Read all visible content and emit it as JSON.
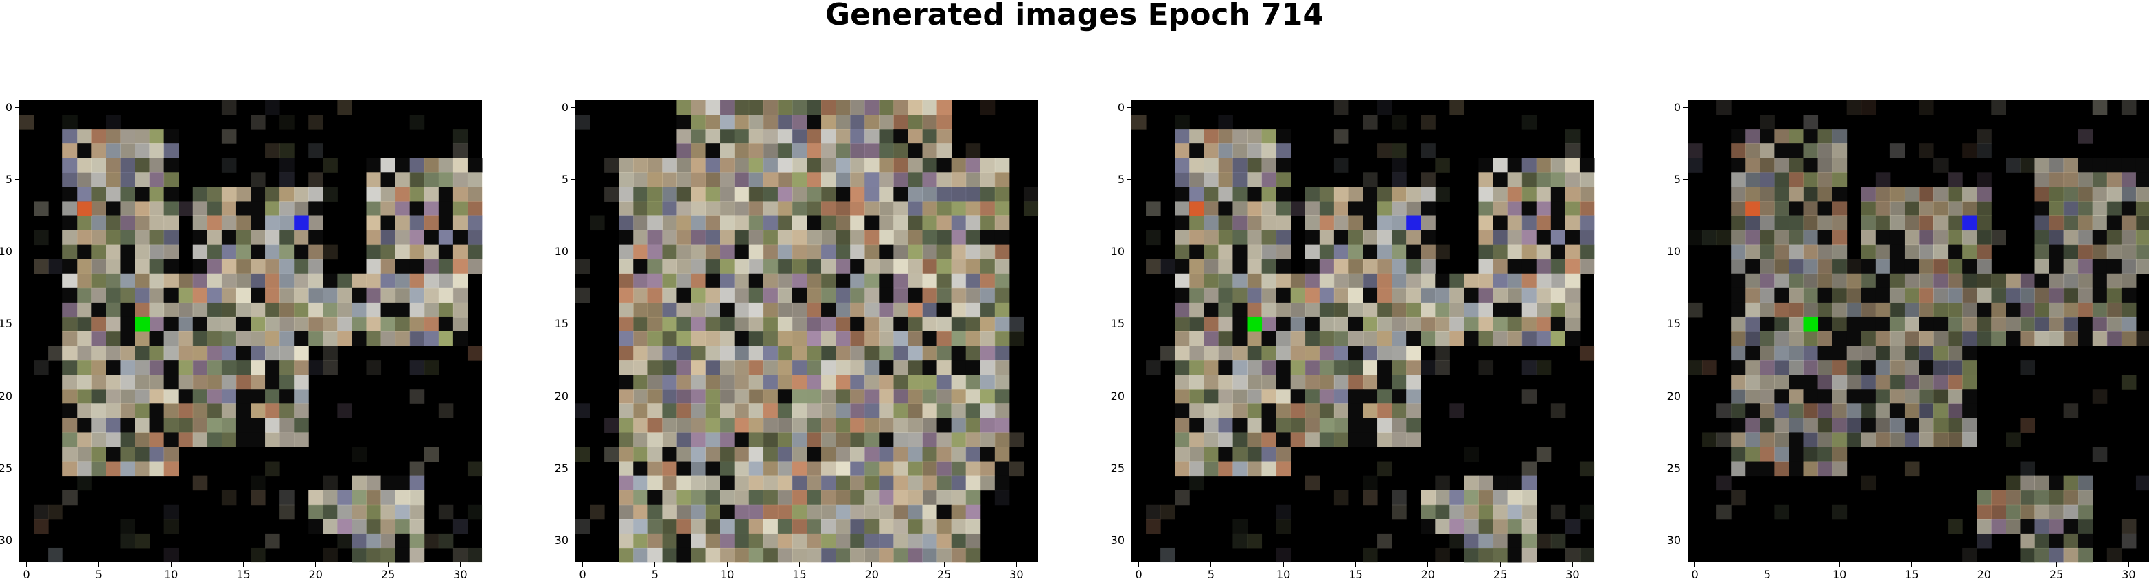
{
  "figure": {
    "title": "Generated images Epoch 714"
  },
  "panels": [
    {
      "id": 1,
      "pattern": "sparse"
    },
    {
      "id": 2,
      "pattern": "dense"
    },
    {
      "id": 3,
      "pattern": "sparse"
    },
    {
      "id": 4,
      "pattern": "sparse-dim"
    }
  ],
  "axes": {
    "xticks": [
      "0",
      "5",
      "10",
      "15",
      "20",
      "25",
      "30"
    ],
    "yticks": [
      "0",
      "5",
      "10",
      "15",
      "20",
      "25",
      "30"
    ],
    "range": [
      0,
      31
    ]
  },
  "colors": {
    "background": "#ffffff",
    "image_background": "#000000",
    "palette": [
      "#d8cfb7",
      "#c9c2ad",
      "#e4dfc9",
      "#b8b0a2",
      "#a9b3bf",
      "#d5c09f",
      "#8f9c78",
      "#6e7450",
      "#c4a886",
      "#a58aa7",
      "#7d7f9e",
      "#c98d6a",
      "#9ca66b",
      "#5b684f",
      "#d6d5d0",
      "#b8a17a"
    ],
    "accents": [
      "#00e000",
      "#2020e8",
      "#d75d2c"
    ]
  }
}
